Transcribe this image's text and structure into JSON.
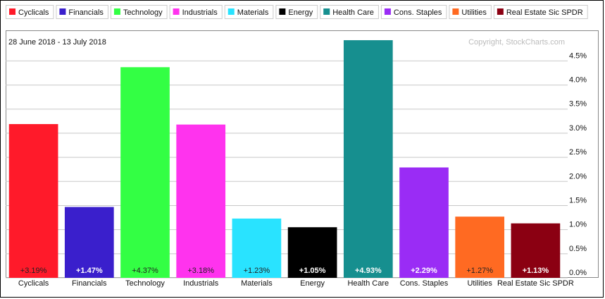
{
  "chart_data": {
    "type": "bar",
    "subtitle": "28 June 2018 - 13 July 2018",
    "annotation": "Copyright, StockCharts.com",
    "categories": [
      "Cyclicals",
      "Financials",
      "Technology",
      "Industrials",
      "Materials",
      "Energy",
      "Health Care",
      "Cons. Staples",
      "Utilities",
      "Real Estate Sic SPDR"
    ],
    "values": [
      3.19,
      1.47,
      4.37,
      3.18,
      1.23,
      1.05,
      4.93,
      2.29,
      1.27,
      1.13
    ],
    "value_labels": [
      "+3.19%",
      "+1.47%",
      "+4.37%",
      "+3.18%",
      "+1.23%",
      "+1.05%",
      "+4.93%",
      "+2.29%",
      "+1.27%",
      "+1.13%"
    ],
    "colors": [
      "#ff1a2a",
      "#3a1fcc",
      "#33ff44",
      "#ff33ee",
      "#29e3ff",
      "#000000",
      "#168f8f",
      "#9a2cf5",
      "#ff6a22",
      "#8b0012"
    ],
    "ylim": [
      0,
      5.12
    ],
    "yticks": [
      {
        "value": 0,
        "label": "0.0%"
      },
      {
        "value": 0.5,
        "label": "0.5%"
      },
      {
        "value": 1,
        "label": "1.0%"
      },
      {
        "value": 1.5,
        "label": "1.5%"
      },
      {
        "value": 2,
        "label": "2.0%"
      },
      {
        "value": 2.5,
        "label": "2.5%"
      },
      {
        "value": 3,
        "label": "3.0%"
      },
      {
        "value": 3.5,
        "label": "3.5%"
      },
      {
        "value": 4,
        "label": "4.0%"
      },
      {
        "value": 4.5,
        "label": "4.5%"
      }
    ],
    "grid": true
  }
}
